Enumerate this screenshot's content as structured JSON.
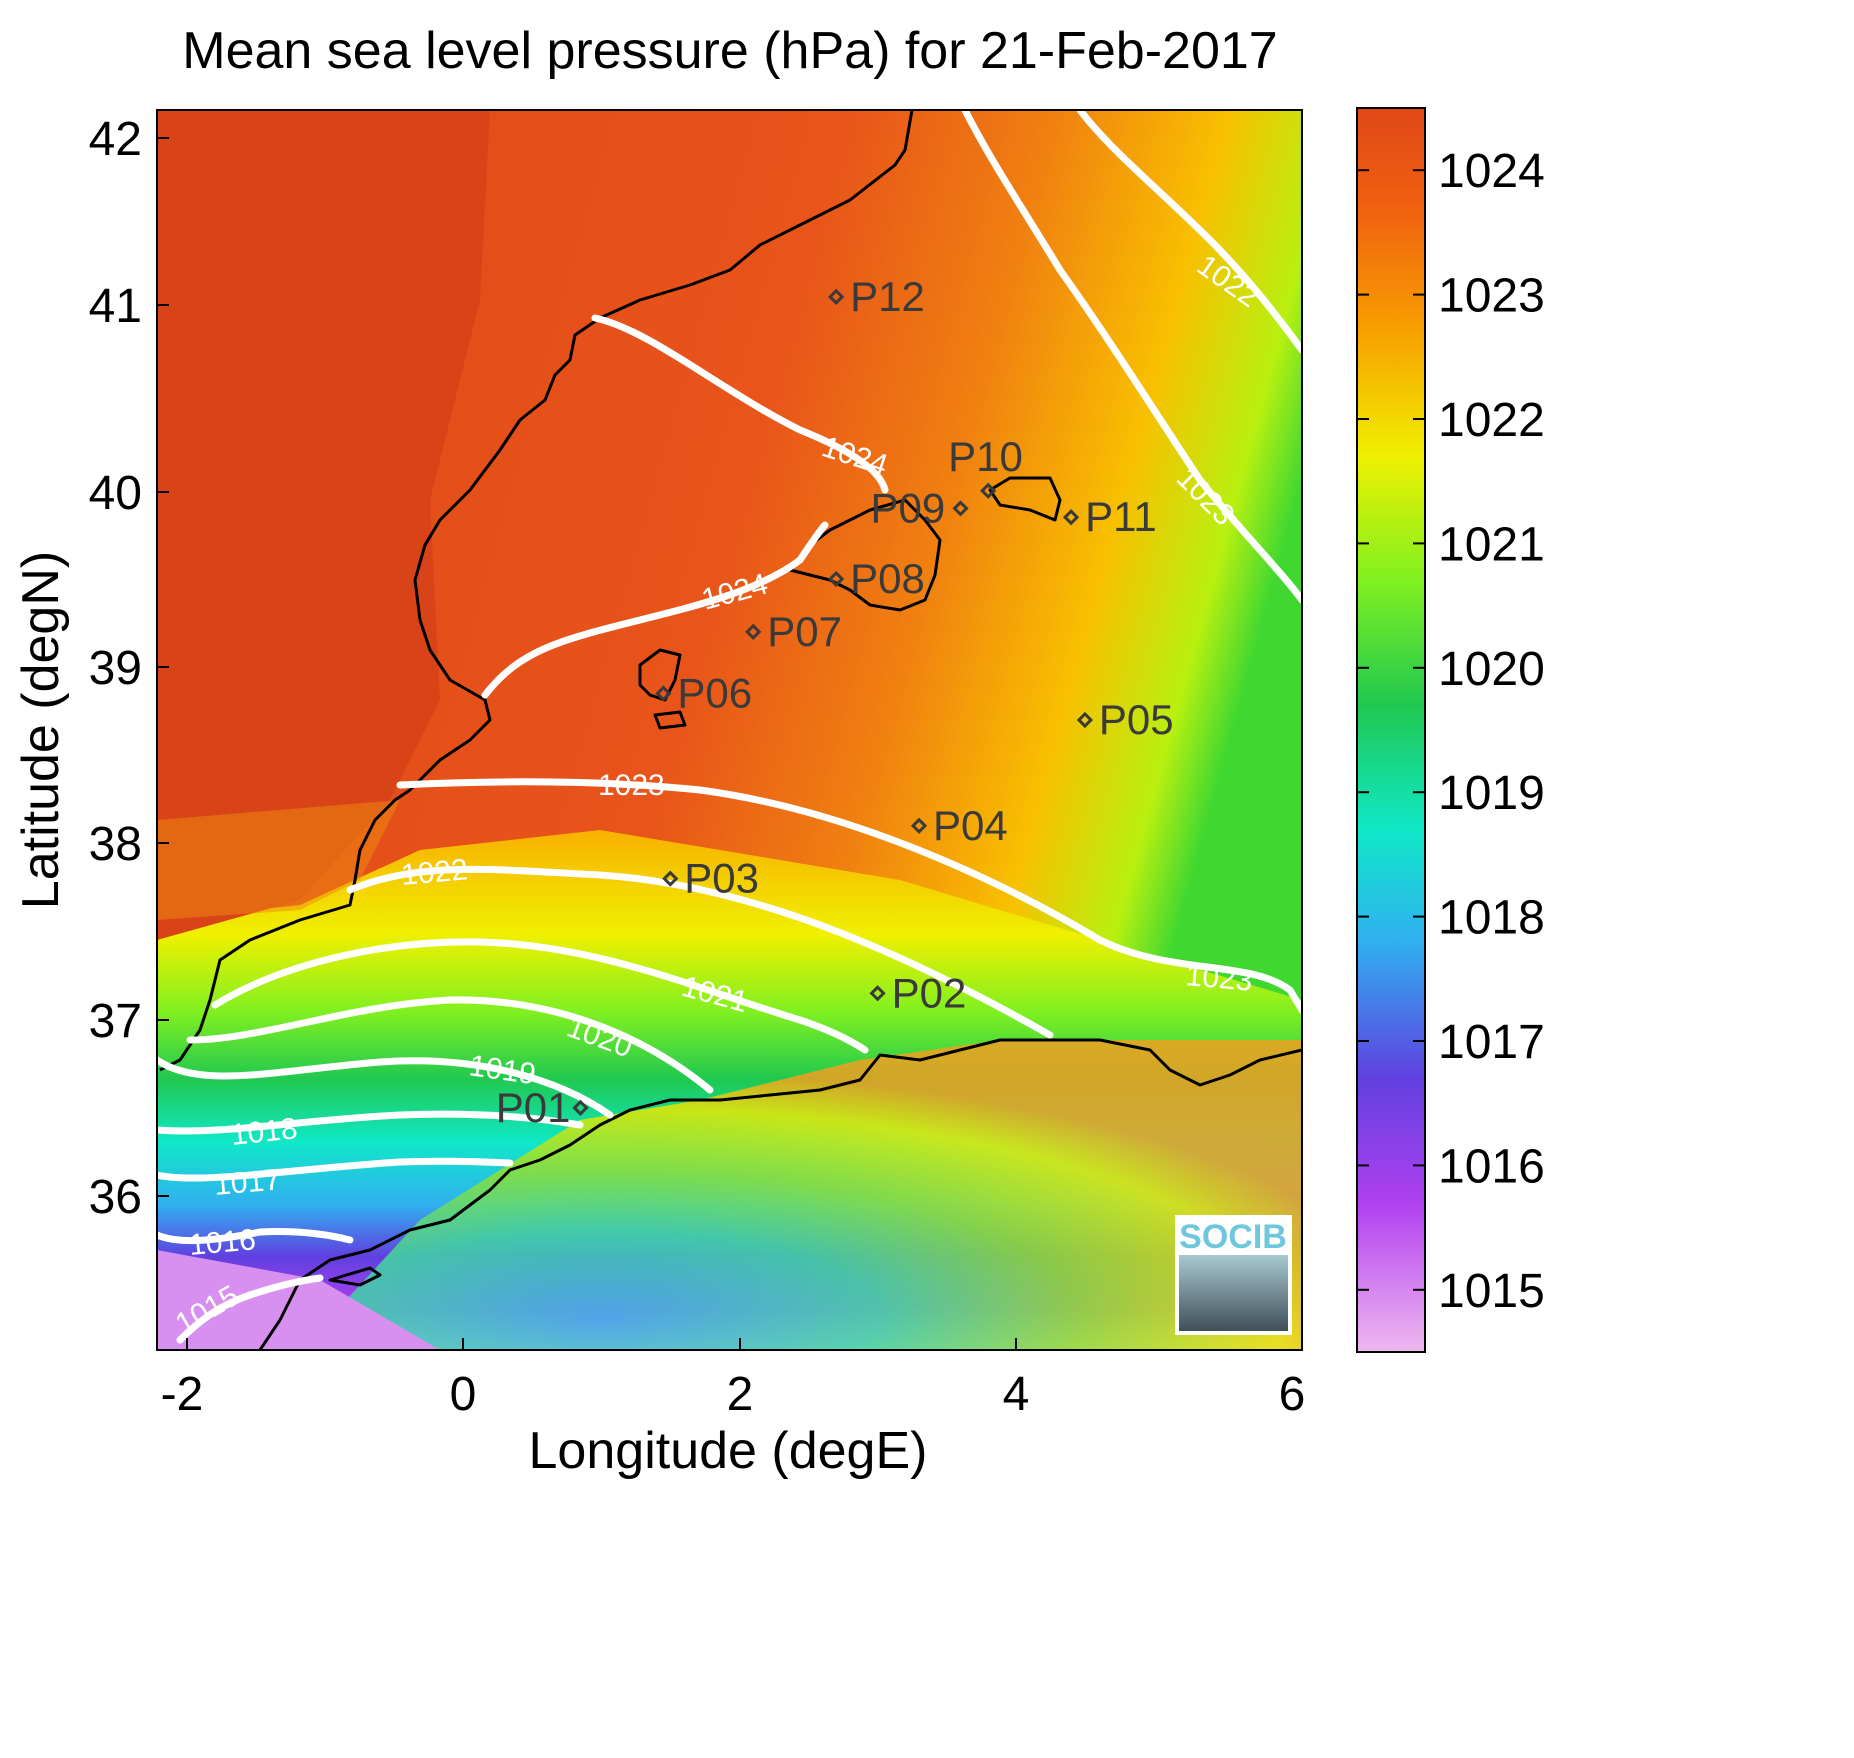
{
  "title": "Mean sea level pressure (hPa) for 21-Feb-2017",
  "xlabel": "Longitude (degE)",
  "ylabel": "Latitude (degN)",
  "xticks": [
    "-2",
    "0",
    "2",
    "4",
    "6"
  ],
  "yticks": [
    "42",
    "41",
    "40",
    "39",
    "38",
    "37",
    "36"
  ],
  "colorbar": {
    "ticks": [
      "1024",
      "1023",
      "1022",
      "1021",
      "1020",
      "1019",
      "1018",
      "1017",
      "1016",
      "1015"
    ],
    "range": [
      1014.5,
      1024.5
    ],
    "colors": [
      "#f0b8f0",
      "#b040f0",
      "#6040e0",
      "#30b0f0",
      "#10e8c8",
      "#20c850",
      "#80f020",
      "#f0f000",
      "#f8a000",
      "#f06010",
      "#e04818"
    ]
  },
  "contour_labels": [
    "1024",
    "1024",
    "1023",
    "1023",
    "1023",
    "1022",
    "1022",
    "1021",
    "1020",
    "1019",
    "1018",
    "1017",
    "1016",
    "1015"
  ],
  "points": [
    {
      "id": "P01",
      "lon": 0.85,
      "lat": 36.5
    },
    {
      "id": "P02",
      "lon": 3.0,
      "lat": 37.15
    },
    {
      "id": "P03",
      "lon": 1.5,
      "lat": 37.8
    },
    {
      "id": "P04",
      "lon": 3.3,
      "lat": 38.1
    },
    {
      "id": "P05",
      "lon": 4.5,
      "lat": 38.7
    },
    {
      "id": "P06",
      "lon": 1.45,
      "lat": 38.85
    },
    {
      "id": "P07",
      "lon": 2.1,
      "lat": 39.2
    },
    {
      "id": "P08",
      "lon": 2.7,
      "lat": 39.5
    },
    {
      "id": "P09",
      "lon": 3.6,
      "lat": 39.9
    },
    {
      "id": "P10",
      "lon": 3.8,
      "lat": 40.0
    },
    {
      "id": "P11",
      "lon": 4.4,
      "lat": 39.85
    },
    {
      "id": "P12",
      "lon": 2.7,
      "lat": 41.1
    }
  ],
  "logo": "SOCIB",
  "colors": {
    "high": "#e04818",
    "mid_high": "#f07010",
    "mid": "#f0f000",
    "green": "#20c850",
    "cyan": "#10e8c8",
    "violet": "#b040f0"
  }
}
